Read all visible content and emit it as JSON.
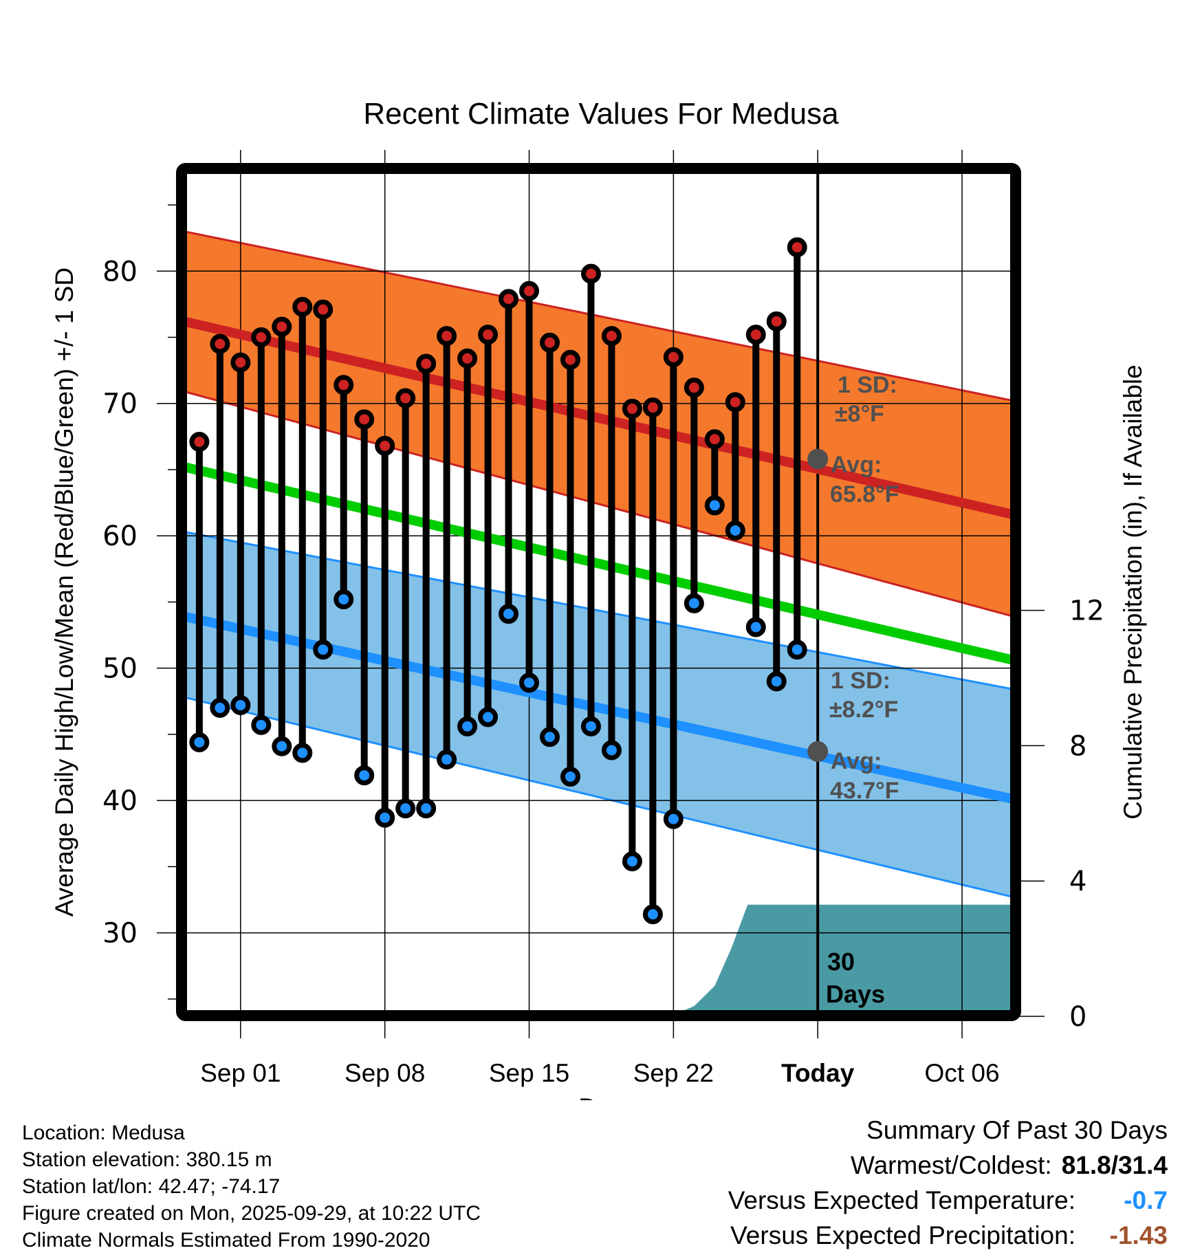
{
  "chart_data": {
    "type": "line",
    "title": "Recent Climate Values For Medusa",
    "xlabel": "Day",
    "ylabel": "Average Daily High/Low/Mean (Red/Blue/Green) +/- 1 SD",
    "y2label": "Cumulative Precipitation (in), If Available",
    "ylim": [
      23.9,
      87.6
    ],
    "y2lim": [
      0,
      15.0
    ],
    "yticks": [
      "30",
      "40",
      "50",
      "60",
      "70",
      "80"
    ],
    "y2ticks": [
      "0",
      "4",
      "8",
      "12"
    ],
    "xticks": [
      "Sep 01",
      "Sep 08",
      "Sep 15",
      "Sep 22",
      "Today",
      "Oct 06"
    ],
    "xtick_days": [
      0,
      7,
      14,
      21,
      28,
      35
    ],
    "xlim_days": [
      -2.73,
      37.5
    ],
    "today_day": 28,
    "grid": true,
    "days": [
      -2,
      -1,
      0,
      1,
      2,
      3,
      4,
      5,
      6,
      7,
      8,
      9,
      10,
      11,
      12,
      13,
      14,
      15,
      16,
      17,
      18,
      19,
      20,
      21,
      22,
      23,
      24,
      25,
      26,
      27
    ],
    "dates": [
      "Aug 30",
      "Aug 31",
      "Sep 01",
      "Sep 02",
      "Sep 03",
      "Sep 04",
      "Sep 05",
      "Sep 06",
      "Sep 07",
      "Sep 08",
      "Sep 09",
      "Sep 10",
      "Sep 11",
      "Sep 12",
      "Sep 13",
      "Sep 14",
      "Sep 15",
      "Sep 16",
      "Sep 17",
      "Sep 18",
      "Sep 19",
      "Sep 20",
      "Sep 21",
      "Sep 22",
      "Sep 23",
      "Sep 24",
      "Sep 25",
      "Sep 26",
      "Sep 27",
      "Sep 28"
    ],
    "series": [
      {
        "name": "Daily High",
        "color": "#cc2222",
        "values": [
          67.1,
          74.5,
          73.1,
          75.0,
          75.8,
          77.3,
          77.1,
          71.4,
          68.8,
          66.8,
          70.4,
          73.0,
          75.1,
          73.4,
          75.2,
          77.9,
          78.5,
          74.6,
          73.3,
          79.8,
          75.1,
          69.6,
          69.7,
          73.5,
          71.2,
          67.3,
          70.1,
          75.2,
          76.2,
          81.8
        ]
      },
      {
        "name": "Daily Low",
        "color": "#1e90ff",
        "values": [
          44.4,
          47.0,
          47.2,
          45.7,
          44.1,
          43.6,
          51.4,
          55.2,
          41.9,
          38.7,
          39.4,
          39.4,
          43.1,
          45.6,
          46.3,
          54.1,
          48.9,
          44.8,
          41.8,
          45.6,
          43.8,
          35.4,
          31.4,
          38.6,
          54.9,
          62.3,
          60.4,
          53.1,
          49.0,
          51.4
        ]
      }
    ],
    "normals": {
      "x_days": [
        -2.73,
        37.5
      ],
      "high_mean": [
        76.2,
        61.6
      ],
      "high_upper": [
        83.0,
        70.2
      ],
      "high_lower": [
        70.9,
        53.9
      ],
      "mean": [
        65.2,
        50.6
      ],
      "low_mean": [
        53.9,
        40.1
      ],
      "low_upper": [
        60.3,
        48.4
      ],
      "low_lower": [
        47.8,
        32.7
      ]
    },
    "precip": {
      "x_days": [
        -2.73,
        5.0,
        5.1,
        21.0,
        22.0,
        23.0,
        23.8,
        24.6,
        37.5
      ],
      "values": [
        0,
        0,
        0.05,
        0.05,
        0.3,
        0.9,
        2.0,
        3.3,
        3.3
      ],
      "color": "#4a9aa4"
    },
    "annotations": {
      "high_sd": "1 SD:",
      "high_sd_value": "±8°F",
      "high_avg": "Avg:",
      "high_avg_value": "65.8°F",
      "high_avg_at_today": 65.8,
      "low_sd": "1 SD:",
      "low_sd_value": "±8.2°F",
      "low_avg": "Avg:",
      "low_avg_value": "43.7°F",
      "low_avg_at_today": 43.7,
      "window_label_1": "30",
      "window_label_2": "Days"
    },
    "colors": {
      "high_band": "#f5792c",
      "high_line": "#cc2222",
      "low_band": "#83c1e8",
      "low_line": "#1e90ff",
      "mean_line": "#00cc00",
      "annotation": "#505050"
    }
  },
  "info": {
    "location": "Location: Medusa",
    "elevation": "Station elevation: 380.15 m",
    "latlon": "Station lat/lon: 42.47; -74.17",
    "created": "Figure created on Mon, 2025-09-29, at 10:22 UTC",
    "normals": "Climate Normals Estimated From 1990-2020"
  },
  "summary": {
    "title": "Summary Of Past 30 Days",
    "warmest_label": "Warmest/Coldest:",
    "warmest_value": "81.8/31.4",
    "temp_label": "Versus Expected Temperature:",
    "temp_value": "-0.7",
    "temp_color": "#1e90ff",
    "precip_label": "Versus Expected Precipitation:",
    "precip_value": "-1.43",
    "precip_color": "#a0522d"
  }
}
